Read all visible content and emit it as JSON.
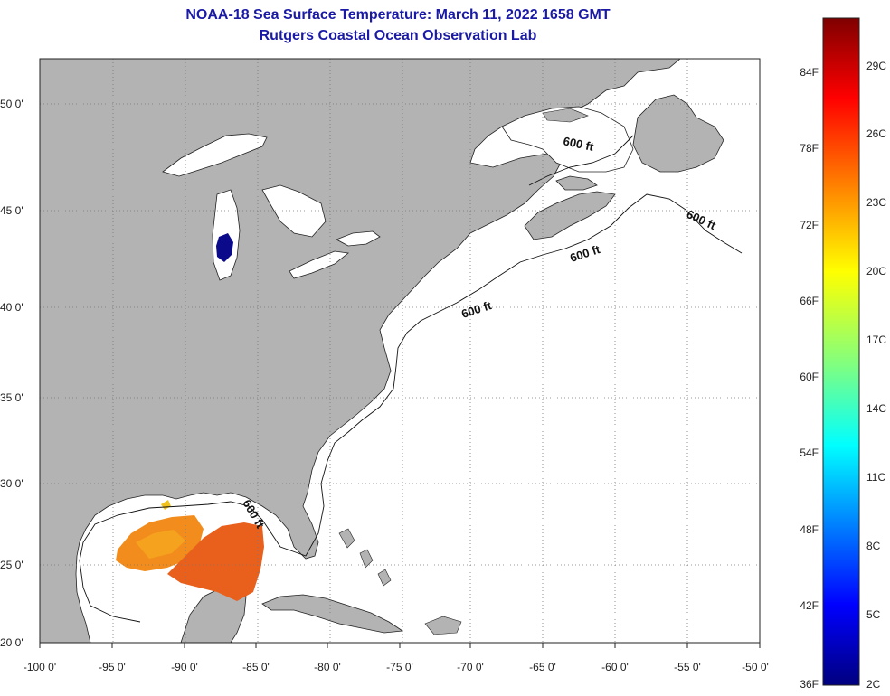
{
  "title": {
    "line1": "NOAA-18 Sea Surface Temperature:  March 11, 2022 1658 GMT",
    "line2": "Rutgers Coastal Ocean Observation Lab"
  },
  "map": {
    "lat_labels": [
      "50 0'",
      "45 0'",
      "40 0'",
      "35 0'",
      "30 0'",
      "25 0'",
      "20 0'"
    ],
    "lon_labels": [
      "-100 0'",
      "-95 0'",
      "-90 0'",
      "-85 0'",
      "-80 0'",
      "-75 0'",
      "-70 0'",
      "-65 0'",
      "-60 0'",
      "-55 0'",
      "-50 0'"
    ],
    "contour_label": "600 ft",
    "land_color": "#b3b3b3",
    "ocean_color": "#ffffff"
  },
  "colorbar": {
    "fahrenheit_labels": [
      "84F",
      "78F",
      "72F",
      "66F",
      "60F",
      "54F",
      "48F",
      "42F",
      "36F"
    ],
    "celsius_labels": [
      "29C",
      "26C",
      "23C",
      "20C",
      "17C",
      "14C",
      "11C",
      "8C",
      "5C",
      "2C"
    ],
    "gradient_colors": [
      "#7f0000",
      "#ff0000",
      "#ff8000",
      "#ffff00",
      "#80ff80",
      "#00ffff",
      "#0080ff",
      "#0000ff",
      "#00007f"
    ]
  }
}
